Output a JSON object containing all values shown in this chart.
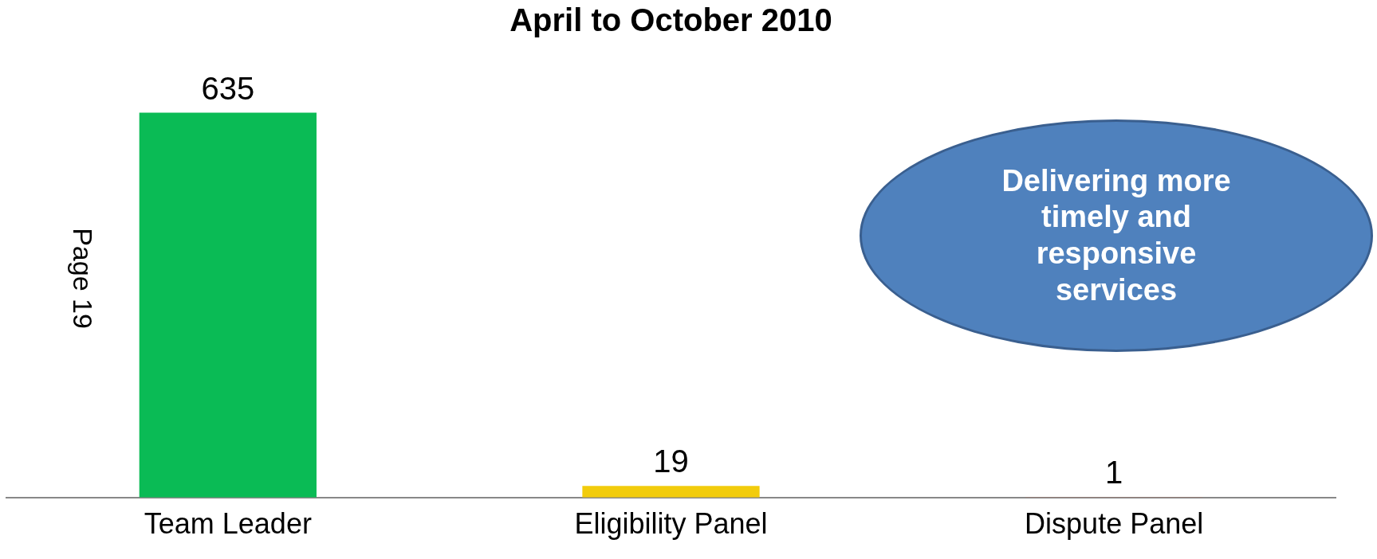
{
  "chart_data": {
    "type": "bar",
    "title": "April to October 2010",
    "categories": [
      "Team Leader",
      "Eligibility Panel",
      "Dispute Panel"
    ],
    "values": [
      635,
      19,
      1
    ],
    "colors": [
      "#0abb55",
      "#f2cc0c",
      "#a07c70"
    ],
    "data_labels": true,
    "grid": false,
    "legend": false,
    "tick_labels": "x",
    "annotations": [
      "Delivering more timely and responsive services",
      "Page 19"
    ]
  }
}
